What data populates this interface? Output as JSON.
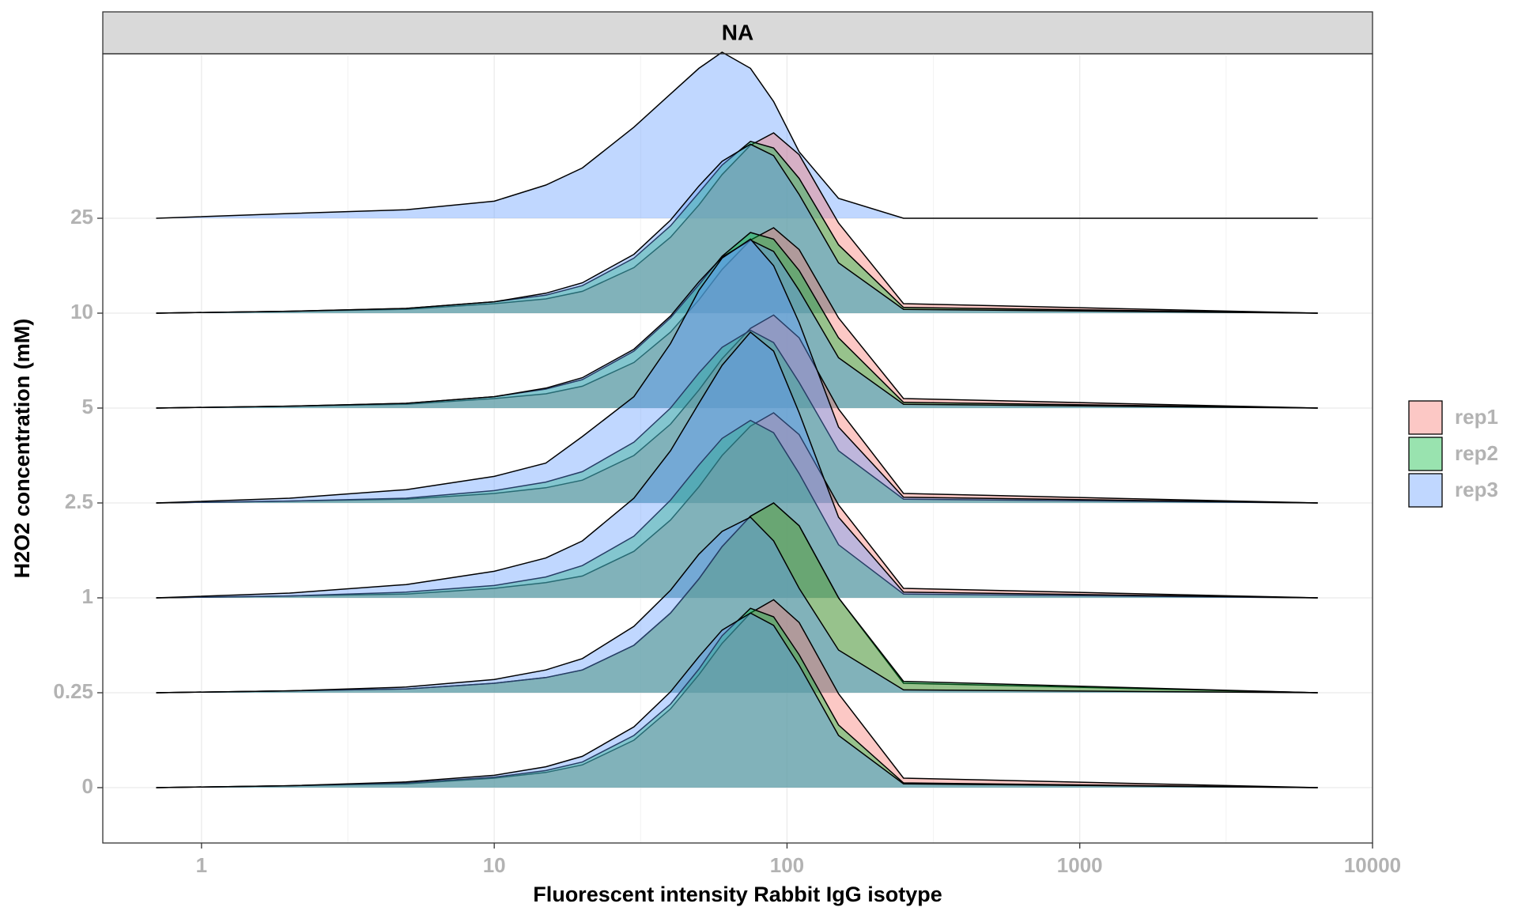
{
  "chart_data": {
    "type": "ridgeline",
    "strip_title": "NA",
    "x_label": "Fluorescent intensity Rabbit IgG isotype",
    "y_label": "H2O2 concentration (mM)",
    "log_x": true,
    "grid": true,
    "xlim": [
      0.46,
      10000
    ],
    "xticks": [
      1,
      10,
      100,
      1000,
      10000
    ],
    "categories": [
      "0",
      "0.25",
      "1",
      "2.5",
      "5",
      "10",
      "25"
    ],
    "x": [
      0.7,
      2,
      5,
      10,
      15,
      20,
      30,
      40,
      50,
      60,
      75,
      90,
      110,
      150,
      250,
      6500
    ],
    "series": [
      {
        "name": "rep1",
        "color": "#F8766D",
        "values": [
          [
            0,
            0.02,
            0.04,
            0.1,
            0.16,
            0.24,
            0.5,
            0.83,
            1.19,
            1.52,
            1.84,
            1.98,
            1.74,
            0.99,
            0.1,
            0
          ],
          [
            0,
            0.02,
            0.04,
            0.1,
            0.16,
            0.24,
            0.5,
            0.84,
            1.2,
            1.54,
            1.86,
            2.0,
            1.76,
            1.0,
            0.1,
            0
          ],
          [
            0,
            0.02,
            0.04,
            0.1,
            0.16,
            0.23,
            0.49,
            0.82,
            1.17,
            1.5,
            1.81,
            1.95,
            1.72,
            0.98,
            0.1,
            0
          ],
          [
            0,
            0.02,
            0.04,
            0.1,
            0.16,
            0.24,
            0.5,
            0.83,
            1.19,
            1.52,
            1.84,
            1.98,
            1.74,
            0.99,
            0.1,
            0
          ],
          [
            0,
            0.02,
            0.04,
            0.1,
            0.15,
            0.23,
            0.48,
            0.8,
            1.14,
            1.46,
            1.77,
            1.9,
            1.67,
            0.95,
            0.1,
            0
          ],
          [
            0,
            0.02,
            0.04,
            0.1,
            0.15,
            0.23,
            0.48,
            0.8,
            1.14,
            1.46,
            1.77,
            1.9,
            1.67,
            0.95,
            0.1,
            0
          ],
          null
        ]
      },
      {
        "name": "rep2",
        "color": "#00BA38",
        "values": [
          [
            0,
            0.02,
            0.05,
            0.11,
            0.18,
            0.27,
            0.55,
            0.88,
            1.25,
            1.6,
            1.89,
            1.8,
            1.4,
            0.66,
            0.05,
            0
          ],
          [
            0,
            0.02,
            0.04,
            0.1,
            0.16,
            0.24,
            0.5,
            0.84,
            1.2,
            1.54,
            1.86,
            2.0,
            1.76,
            1.0,
            0.12,
            0
          ],
          [
            0,
            0.02,
            0.06,
            0.13,
            0.22,
            0.34,
            0.65,
            1.03,
            1.4,
            1.68,
            1.87,
            1.74,
            1.31,
            0.56,
            0.04,
            0
          ],
          [
            0,
            0.02,
            0.05,
            0.13,
            0.22,
            0.33,
            0.64,
            1.0,
            1.37,
            1.64,
            1.82,
            1.69,
            1.27,
            0.55,
            0.04,
            0
          ],
          [
            0,
            0.02,
            0.05,
            0.12,
            0.2,
            0.3,
            0.6,
            0.95,
            1.3,
            1.6,
            1.85,
            1.78,
            1.45,
            0.74,
            0.06,
            0
          ],
          [
            0,
            0.02,
            0.05,
            0.12,
            0.19,
            0.29,
            0.58,
            0.92,
            1.27,
            1.56,
            1.81,
            1.74,
            1.42,
            0.72,
            0.06,
            0
          ],
          null
        ]
      },
      {
        "name": "rep3",
        "color": "#619CFF",
        "values": [
          [
            0,
            0.02,
            0.06,
            0.13,
            0.22,
            0.33,
            0.64,
            1.01,
            1.38,
            1.66,
            1.84,
            1.71,
            1.29,
            0.55,
            0.04,
            0
          ],
          [
            0,
            0.02,
            0.06,
            0.14,
            0.24,
            0.36,
            0.7,
            1.08,
            1.46,
            1.7,
            1.85,
            1.6,
            1.1,
            0.45,
            0.03,
            0
          ],
          [
            0,
            0.05,
            0.14,
            0.28,
            0.42,
            0.6,
            1.05,
            1.55,
            2.05,
            2.45,
            2.8,
            2.6,
            1.95,
            0.85,
            0.06,
            0
          ],
          [
            0,
            0.05,
            0.14,
            0.28,
            0.42,
            0.7,
            1.12,
            1.68,
            2.24,
            2.58,
            2.78,
            2.5,
            1.9,
            0.8,
            0.06,
            0
          ],
          [
            0,
            0.02,
            0.05,
            0.12,
            0.21,
            0.32,
            0.62,
            0.97,
            1.33,
            1.59,
            1.77,
            1.65,
            1.24,
            0.53,
            0.04,
            0
          ],
          [
            0,
            0.02,
            0.05,
            0.12,
            0.21,
            0.32,
            0.62,
            0.98,
            1.34,
            1.6,
            1.78,
            1.66,
            1.25,
            0.53,
            0.04,
            0
          ],
          [
            0,
            0.05,
            0.09,
            0.18,
            0.35,
            0.53,
            0.96,
            1.31,
            1.58,
            1.75,
            1.58,
            1.23,
            0.7,
            0.21,
            0,
            0
          ]
        ]
      }
    ]
  }
}
